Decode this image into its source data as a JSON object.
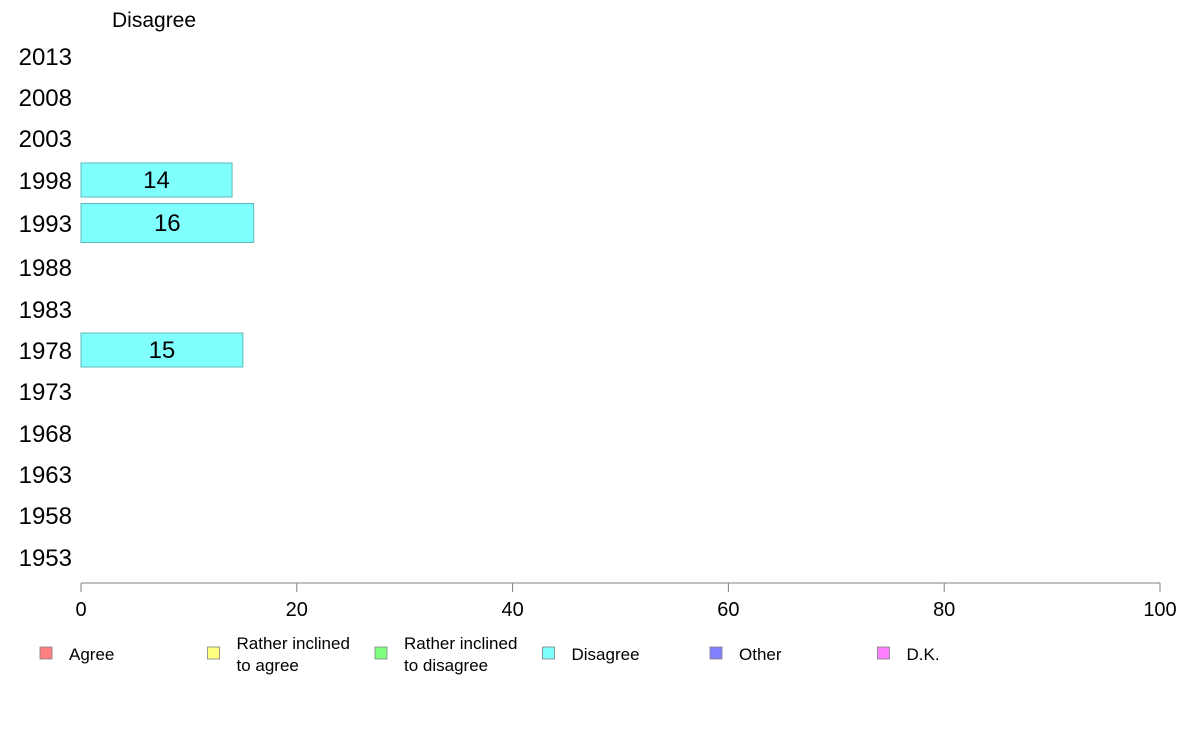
{
  "chart_data": {
    "type": "bar",
    "orientation": "horizontal",
    "title": "Disagree",
    "categories": [
      "2013",
      "2008",
      "2003",
      "1998",
      "1993",
      "1988",
      "1983",
      "1978",
      "1973",
      "1968",
      "1963",
      "1958",
      "1953"
    ],
    "series": [
      {
        "name": "Disagree",
        "color": "#80ffff",
        "values": [
          null,
          null,
          null,
          14,
          16,
          null,
          null,
          15,
          null,
          null,
          null,
          null,
          null
        ]
      }
    ],
    "xlim": [
      0,
      100
    ],
    "xticks": [
      0,
      20,
      40,
      60,
      80,
      100
    ],
    "grid": false,
    "legend_position": "bottom",
    "legend": [
      {
        "label": "Agree",
        "color": "#ff8080"
      },
      {
        "label": "Rather inclined to agree",
        "color": "#ffff80"
      },
      {
        "label": "Rather inclined to disagree",
        "color": "#80ff80"
      },
      {
        "label": "Disagree",
        "color": "#80ffff"
      },
      {
        "label": "Other",
        "color": "#8080ff"
      },
      {
        "label": "D.K.",
        "color": "#ff80ff"
      }
    ]
  }
}
